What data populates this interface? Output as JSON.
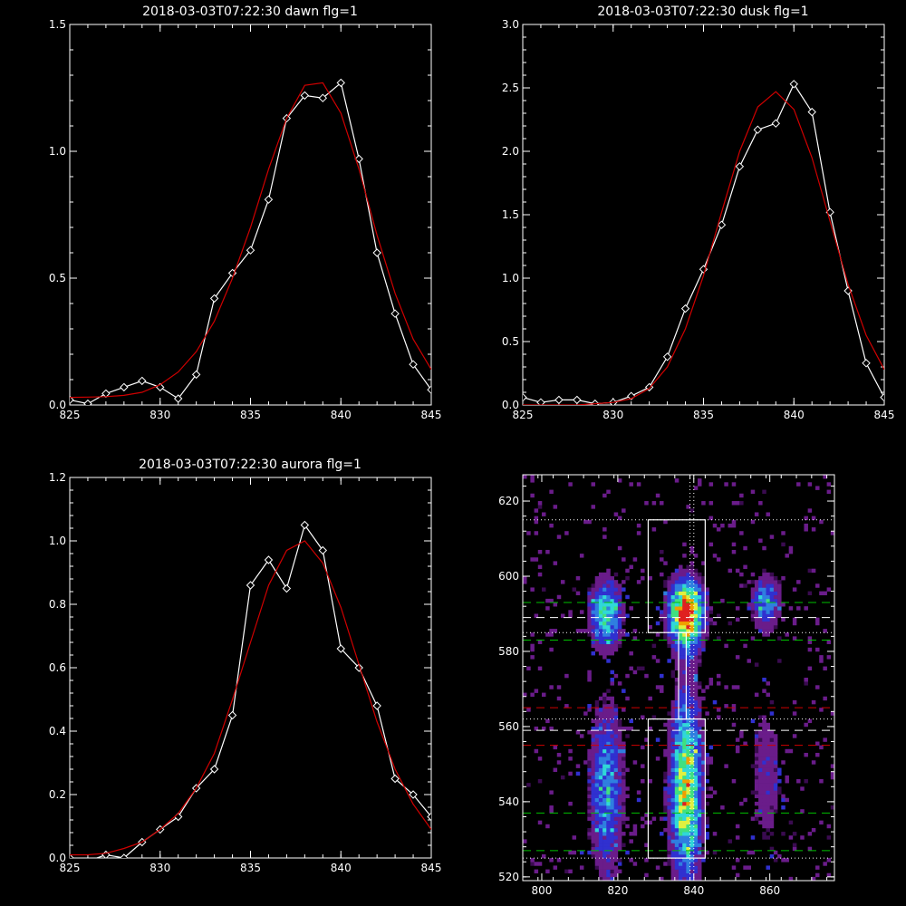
{
  "chart_data": [
    {
      "type": "line",
      "title": "2018-03-03T07:22:30 dawn flg=1",
      "xlim": [
        825,
        845
      ],
      "ylim": [
        0,
        1.5
      ],
      "xticks": [
        "825",
        "830",
        "835",
        "840",
        "845"
      ],
      "yticks": [
        "0.0",
        "0.5",
        "1.0",
        "1.5"
      ],
      "series": [
        {
          "color": "#ffffff",
          "marker": "diamond",
          "x": [
            825,
            826,
            827,
            828,
            829,
            830,
            831,
            832,
            833,
            834,
            835,
            836,
            837,
            838,
            839,
            840,
            841,
            842,
            843,
            844,
            845
          ],
          "y": [
            0.02,
            0.005,
            0.045,
            0.07,
            0.095,
            0.07,
            0.025,
            0.12,
            0.42,
            0.52,
            0.61,
            0.81,
            1.13,
            1.22,
            1.21,
            1.27,
            0.97,
            0.6,
            0.36,
            0.16,
            0.06
          ]
        },
        {
          "color": "#d00000",
          "marker": "none",
          "x": [
            825,
            826,
            827,
            828,
            829,
            830,
            831,
            832,
            833,
            834,
            835,
            836,
            837,
            838,
            839,
            840,
            841,
            842,
            843,
            844,
            845
          ],
          "y": [
            0.03,
            0.031,
            0.033,
            0.038,
            0.05,
            0.08,
            0.13,
            0.21,
            0.33,
            0.5,
            0.7,
            0.93,
            1.13,
            1.26,
            1.27,
            1.15,
            0.93,
            0.67,
            0.44,
            0.26,
            0.14
          ]
        }
      ]
    },
    {
      "type": "line",
      "title": "2018-03-03T07:22:30 dusk flg=1",
      "xlim": [
        825,
        845
      ],
      "ylim": [
        0,
        3.0
      ],
      "xticks": [
        "825",
        "830",
        "835",
        "840",
        "845"
      ],
      "yticks": [
        "0.0",
        "0.5",
        "1.0",
        "1.5",
        "2.0",
        "2.5",
        "3.0"
      ],
      "series": [
        {
          "color": "#ffffff",
          "marker": "diamond",
          "x": [
            825,
            826,
            827,
            828,
            829,
            830,
            831,
            832,
            833,
            834,
            835,
            836,
            837,
            838,
            839,
            840,
            841,
            842,
            843,
            844,
            845
          ],
          "y": [
            0.06,
            0.02,
            0.04,
            0.04,
            0.01,
            0.02,
            0.07,
            0.14,
            0.38,
            0.76,
            1.07,
            1.42,
            1.88,
            2.17,
            2.22,
            2.53,
            2.31,
            1.52,
            0.9,
            0.33,
            0.06
          ]
        },
        {
          "color": "#d00000",
          "marker": "none",
          "x": [
            825,
            826,
            827,
            828,
            829,
            830,
            831,
            832,
            833,
            834,
            835,
            836,
            837,
            838,
            839,
            840,
            841,
            842,
            843,
            844,
            845
          ],
          "y": [
            0.0,
            0.0,
            0.0,
            0.0,
            0.01,
            0.02,
            0.05,
            0.13,
            0.3,
            0.6,
            1.02,
            1.52,
            2.0,
            2.35,
            2.47,
            2.33,
            1.95,
            1.45,
            0.95,
            0.55,
            0.28
          ]
        }
      ]
    },
    {
      "type": "line",
      "title": "2018-03-03T07:22:30 aurora flg=1",
      "xlim": [
        825,
        845
      ],
      "ylim": [
        0,
        1.2
      ],
      "xticks": [
        "825",
        "830",
        "835",
        "840",
        "845"
      ],
      "yticks": [
        "0.0",
        "0.2",
        "0.4",
        "0.6",
        "0.8",
        "1.0",
        "1.2"
      ],
      "series": [
        {
          "color": "#ffffff",
          "marker": "diamond",
          "x": [
            825,
            826,
            827,
            828,
            829,
            830,
            831,
            832,
            833,
            834,
            835,
            836,
            837,
            838,
            839,
            840,
            841,
            842,
            843,
            844,
            845
          ],
          "y": [
            0.0,
            -0.01,
            0.01,
            0.0,
            0.05,
            0.09,
            0.13,
            0.22,
            0.28,
            0.45,
            0.86,
            0.94,
            0.85,
            1.05,
            0.97,
            0.66,
            0.6,
            0.48,
            0.25,
            0.2,
            0.13
          ]
        },
        {
          "color": "#d00000",
          "marker": "none",
          "x": [
            825,
            826,
            827,
            828,
            829,
            830,
            831,
            832,
            833,
            834,
            835,
            836,
            837,
            838,
            839,
            840,
            841,
            842,
            843,
            844,
            845
          ],
          "y": [
            0.01,
            0.01,
            0.015,
            0.03,
            0.05,
            0.09,
            0.14,
            0.22,
            0.33,
            0.5,
            0.68,
            0.86,
            0.97,
            1.0,
            0.93,
            0.79,
            0.61,
            0.43,
            0.28,
            0.17,
            0.09
          ]
        }
      ]
    },
    {
      "type": "heatmap",
      "title": "",
      "xlim": [
        795,
        877
      ],
      "ylim": [
        519,
        627
      ],
      "xticks": [
        "800",
        "820",
        "840",
        "860"
      ],
      "yticks": [
        "520",
        "540",
        "560",
        "580",
        "600",
        "620"
      ],
      "colormap": [
        "#000000",
        "#3a0b50",
        "#6a1c8a",
        "#3030d0",
        "#2f7fe0",
        "#30d8d8",
        "#40e080",
        "#e0f040",
        "#f0a000",
        "#e02020"
      ],
      "blobs": [
        {
          "x": 817,
          "y": 590,
          "sx": 2.8,
          "sy": 6,
          "peak": 0.55
        },
        {
          "x": 838,
          "y": 590,
          "sx": 3.0,
          "sy": 6,
          "peak": 0.98
        },
        {
          "x": 859,
          "y": 593,
          "sx": 2.5,
          "sy": 5,
          "peak": 0.4
        },
        {
          "x": 817,
          "y": 543,
          "sx": 3.0,
          "sy": 15,
          "peak": 0.42
        },
        {
          "x": 838,
          "y": 544,
          "sx": 2.8,
          "sy": 17,
          "peak": 0.72
        },
        {
          "x": 859,
          "y": 547,
          "sx": 2.8,
          "sy": 13,
          "peak": 0.2
        }
      ],
      "boxes": [
        {
          "x0": 828,
          "x1": 843,
          "y0": 585,
          "y1": 615
        },
        {
          "x0": 836,
          "x1": 838,
          "y0": 562,
          "y1": 585
        },
        {
          "x0": 828,
          "x1": 843,
          "y0": 525,
          "y1": 562
        }
      ],
      "vlines": [
        {
          "x": 839,
          "color": "#ffffff",
          "style": "dotted"
        },
        {
          "x": 840,
          "color": "#ffffff",
          "style": "dotted"
        }
      ],
      "hlines": [
        {
          "y": 615,
          "color": "#ffffff",
          "style": "dotted"
        },
        {
          "y": 593,
          "color": "#00c000",
          "style": "dashed"
        },
        {
          "y": 589,
          "color": "#ffffff",
          "style": "dashed"
        },
        {
          "y": 585,
          "color": "#ffffff",
          "style": "dotted"
        },
        {
          "y": 583,
          "color": "#00c000",
          "style": "dashed"
        },
        {
          "y": 565,
          "color": "#d00000",
          "style": "dashed"
        },
        {
          "y": 562,
          "color": "#ffffff",
          "style": "dotted"
        },
        {
          "y": 559,
          "color": "#ffffff",
          "style": "dashed"
        },
        {
          "y": 555,
          "color": "#d00000",
          "style": "dashed"
        },
        {
          "y": 537,
          "color": "#00c000",
          "style": "dashed"
        },
        {
          "y": 527,
          "color": "#00c000",
          "style": "dashed"
        },
        {
          "y": 525,
          "color": "#ffffff",
          "style": "dotted"
        }
      ]
    }
  ]
}
